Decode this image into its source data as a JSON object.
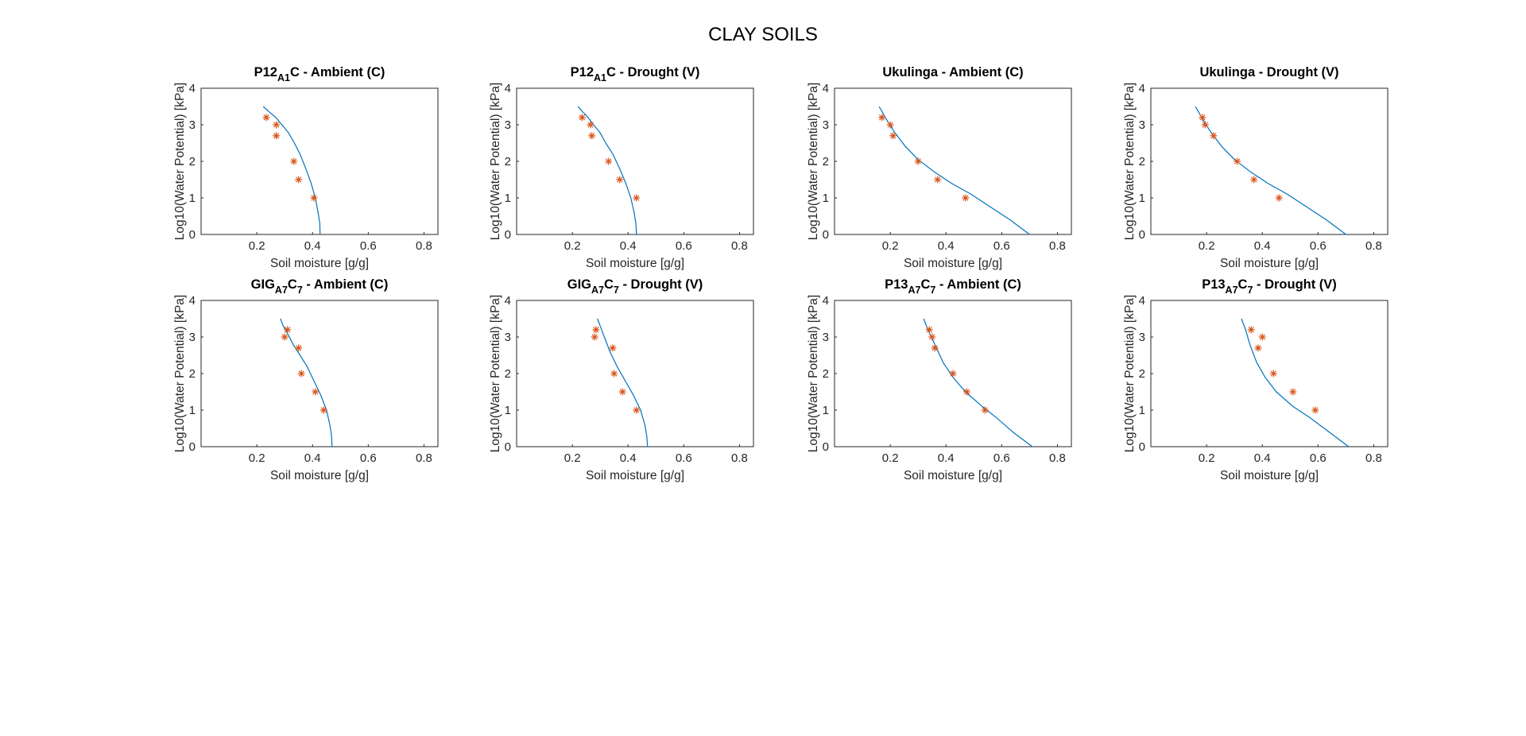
{
  "figure": {
    "title": "CLAY SOILS"
  },
  "style": {
    "line_color": "#0072bd",
    "marker_color": "#d95319",
    "axis_color": "#262626"
  },
  "chart_data": [
    {
      "type": "line",
      "title": {
        "main": "P12",
        "sub": "A1",
        "rest": "C - Ambient (C)"
      },
      "xlabel": "Soil moisture [g/g]",
      "ylabel": "Log10(Water Potential) [kPa]",
      "xlim": [
        0,
        0.85
      ],
      "ylim": [
        0,
        4
      ],
      "xticks": [
        "0.2",
        "0.4",
        "0.6",
        "0.8"
      ],
      "yticks": [
        "0",
        "1",
        "2",
        "3",
        "4"
      ],
      "grid": false,
      "series": [
        {
          "kind": "fit",
          "x": [
            0.427,
            0.426,
            0.42,
            0.41,
            0.395,
            0.376,
            0.355,
            0.335,
            0.312,
            0.29,
            0.268,
            0.245,
            0.223
          ],
          "y": [
            0,
            0.3,
            0.6,
            1.0,
            1.4,
            1.8,
            2.2,
            2.5,
            2.8,
            3.0,
            3.2,
            3.35,
            3.5
          ]
        },
        {
          "kind": "observed",
          "x": [
            0.234,
            0.27,
            0.27,
            0.333,
            0.35,
            0.405
          ],
          "y": [
            3.2,
            3.0,
            2.7,
            2.0,
            1.5,
            1.0
          ]
        }
      ]
    },
    {
      "type": "line",
      "title": {
        "main": "P12",
        "sub": "A1",
        "rest": "C - Drought (V)"
      },
      "xlabel": "Soil moisture [g/g]",
      "ylabel": "Log10(Water Potential) [kPa]",
      "xlim": [
        0,
        0.85
      ],
      "ylim": [
        0,
        4
      ],
      "xticks": [
        "0.2",
        "0.4",
        "0.6",
        "0.8"
      ],
      "yticks": [
        "0",
        "1",
        "2",
        "3",
        "4"
      ],
      "grid": false,
      "series": [
        {
          "kind": "fit",
          "x": [
            0.43,
            0.428,
            0.422,
            0.41,
            0.392,
            0.37,
            0.345,
            0.32,
            0.298,
            0.276,
            0.256,
            0.238,
            0.22
          ],
          "y": [
            0,
            0.3,
            0.6,
            1.0,
            1.4,
            1.8,
            2.2,
            2.5,
            2.8,
            3.0,
            3.2,
            3.35,
            3.5
          ]
        },
        {
          "kind": "observed",
          "x": [
            0.235,
            0.265,
            0.27,
            0.33,
            0.37,
            0.43
          ],
          "y": [
            3.2,
            3.0,
            2.7,
            2.0,
            1.5,
            1.0
          ]
        }
      ]
    },
    {
      "type": "line",
      "title": {
        "main": "Ukulinga - Ambient (C)",
        "sub": "",
        "rest": ""
      },
      "xlabel": "Soil moisture [g/g]",
      "ylabel": "Log10(Water Potential) [kPa]",
      "xlim": [
        0,
        0.85
      ],
      "ylim": [
        0,
        4
      ],
      "xticks": [
        "0.2",
        "0.4",
        "0.6",
        "0.8"
      ],
      "yticks": [
        "0",
        "1",
        "2",
        "3",
        "4"
      ],
      "grid": false,
      "series": [
        {
          "kind": "fit",
          "x": [
            0.7,
            0.63,
            0.56,
            0.49,
            0.42,
            0.36,
            0.3,
            0.255,
            0.215,
            0.19,
            0.16
          ],
          "y": [
            0,
            0.4,
            0.75,
            1.1,
            1.4,
            1.7,
            2.05,
            2.4,
            2.8,
            3.1,
            3.5
          ]
        },
        {
          "kind": "observed",
          "x": [
            0.17,
            0.2,
            0.21,
            0.3,
            0.37,
            0.47
          ],
          "y": [
            3.2,
            3.0,
            2.7,
            2.0,
            1.5,
            1.0
          ]
        }
      ]
    },
    {
      "type": "line",
      "title": {
        "main": "Ukulinga - Drought (V)",
        "sub": "",
        "rest": ""
      },
      "xlabel": "Soil moisture [g/g]",
      "ylabel": "Log10(Water Potential) [kPa]",
      "xlim": [
        0,
        0.85
      ],
      "ylim": [
        0,
        4
      ],
      "xticks": [
        "0.2",
        "0.4",
        "0.6",
        "0.8"
      ],
      "yticks": [
        "0",
        "1",
        "2",
        "3",
        "4"
      ],
      "grid": false,
      "series": [
        {
          "kind": "fit",
          "x": [
            0.7,
            0.63,
            0.56,
            0.49,
            0.42,
            0.36,
            0.3,
            0.255,
            0.215,
            0.19,
            0.16
          ],
          "y": [
            0,
            0.4,
            0.75,
            1.1,
            1.4,
            1.7,
            2.05,
            2.4,
            2.8,
            3.1,
            3.5
          ]
        },
        {
          "kind": "observed",
          "x": [
            0.185,
            0.195,
            0.225,
            0.31,
            0.37,
            0.46
          ],
          "y": [
            3.2,
            3.0,
            2.7,
            2.0,
            1.5,
            1.0
          ]
        }
      ]
    },
    {
      "type": "line",
      "title": {
        "main": "GIG",
        "sub": "A7",
        "rest": "C7 - Ambient (C)",
        "sub2": "7",
        "rest_pre": "C"
      },
      "xlabel": "Soil moisture [g/g]",
      "ylabel": "Log10(Water Potential) [kPa]",
      "xlim": [
        0,
        0.85
      ],
      "ylim": [
        0,
        4
      ],
      "xticks": [
        "0.2",
        "0.4",
        "0.6",
        "0.8"
      ],
      "yticks": [
        "0",
        "1",
        "2",
        "3",
        "4"
      ],
      "grid": false,
      "series": [
        {
          "kind": "fit",
          "x": [
            0.47,
            0.468,
            0.462,
            0.45,
            0.43,
            0.405,
            0.38,
            0.355,
            0.33,
            0.31,
            0.295,
            0.285
          ],
          "y": [
            0,
            0.3,
            0.6,
            1.0,
            1.4,
            1.8,
            2.2,
            2.5,
            2.8,
            3.1,
            3.3,
            3.5
          ]
        },
        {
          "kind": "observed",
          "x": [
            0.3,
            0.31,
            0.35,
            0.36,
            0.41,
            0.44
          ],
          "y": [
            3.0,
            3.2,
            2.7,
            2.0,
            1.5,
            1.0
          ]
        }
      ]
    },
    {
      "type": "line",
      "title": {
        "main": "GIG",
        "sub": "A7",
        "rest": "C7 - Drought (V)",
        "sub2": "7",
        "rest_pre": "C"
      },
      "xlabel": "Soil moisture [g/g]",
      "ylabel": "Log10(Water Potential) [kPa]",
      "xlim": [
        0,
        0.85
      ],
      "ylim": [
        0,
        4
      ],
      "xticks": [
        "0.2",
        "0.4",
        "0.6",
        "0.8"
      ],
      "yticks": [
        "0",
        "1",
        "2",
        "3",
        "4"
      ],
      "grid": false,
      "series": [
        {
          "kind": "fit",
          "x": [
            0.47,
            0.467,
            0.46,
            0.445,
            0.42,
            0.39,
            0.36,
            0.335,
            0.315,
            0.3,
            0.29
          ],
          "y": [
            0,
            0.3,
            0.6,
            1.0,
            1.4,
            1.8,
            2.2,
            2.6,
            3.0,
            3.3,
            3.5
          ]
        },
        {
          "kind": "observed",
          "x": [
            0.28,
            0.285,
            0.345,
            0.35,
            0.38,
            0.43
          ],
          "y": [
            3.0,
            3.2,
            2.7,
            2.0,
            1.5,
            1.0
          ]
        }
      ]
    },
    {
      "type": "line",
      "title": {
        "main": "P13",
        "sub": "A7",
        "rest": "C7 - Ambient (C)",
        "sub2": "7",
        "rest_pre": "C"
      },
      "xlabel": "Soil moisture [g/g]",
      "ylabel": "Log10(Water Potential) [kPa]",
      "xlim": [
        0,
        0.85
      ],
      "ylim": [
        0,
        4
      ],
      "xticks": [
        "0.2",
        "0.4",
        "0.6",
        "0.8"
      ],
      "yticks": [
        "0",
        "1",
        "2",
        "3",
        "4"
      ],
      "grid": false,
      "series": [
        {
          "kind": "fit",
          "x": [
            0.71,
            0.64,
            0.58,
            0.53,
            0.47,
            0.425,
            0.39,
            0.36,
            0.335,
            0.32
          ],
          "y": [
            0,
            0.4,
            0.8,
            1.1,
            1.5,
            1.9,
            2.3,
            2.8,
            3.2,
            3.5
          ]
        },
        {
          "kind": "observed",
          "x": [
            0.34,
            0.35,
            0.36,
            0.425,
            0.475,
            0.54
          ],
          "y": [
            3.2,
            3.0,
            2.7,
            2.0,
            1.5,
            1.0
          ]
        }
      ]
    },
    {
      "type": "line",
      "title": {
        "main": "P13",
        "sub": "A7",
        "rest": "C7 - Drought (V)",
        "sub2": "7",
        "rest_pre": "C"
      },
      "xlabel": "Soil moisture [g/g]",
      "ylabel": "Log10(Water Potential) [kPa]",
      "xlim": [
        0,
        0.85
      ],
      "ylim": [
        0,
        4
      ],
      "xticks": [
        "0.2",
        "0.4",
        "0.6",
        "0.8"
      ],
      "yticks": [
        "0",
        "1",
        "2",
        "3",
        "4"
      ],
      "grid": false,
      "series": [
        {
          "kind": "fit",
          "x": [
            0.71,
            0.64,
            0.57,
            0.51,
            0.45,
            0.41,
            0.38,
            0.355,
            0.34,
            0.325
          ],
          "y": [
            0,
            0.4,
            0.8,
            1.1,
            1.5,
            1.9,
            2.3,
            2.8,
            3.2,
            3.5
          ]
        },
        {
          "kind": "observed",
          "x": [
            0.36,
            0.4,
            0.385,
            0.44,
            0.51,
            0.59
          ],
          "y": [
            3.2,
            3.0,
            2.7,
            2.0,
            1.5,
            1.0
          ]
        }
      ]
    }
  ]
}
